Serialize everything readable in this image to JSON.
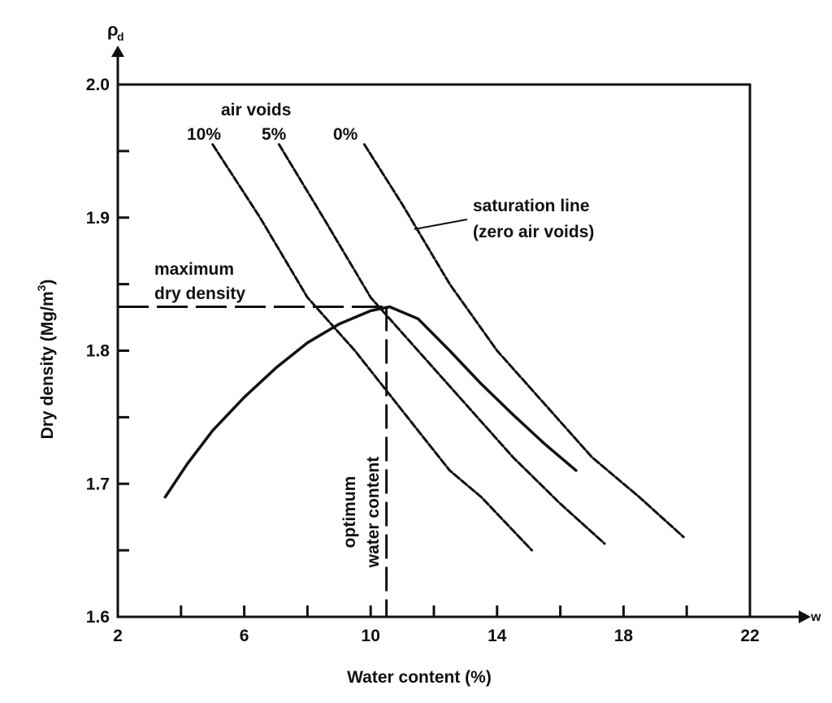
{
  "chart_data": {
    "type": "line",
    "xlabel": "Water content (%)",
    "ylabel": "Dry density (Mg/m",
    "ylabel_sup": "3",
    "ylabel_close": ")",
    "y_axis_symbol": "ρ",
    "y_axis_symbol_sub": "d",
    "x_axis_symbol": "w",
    "xlim": [
      2,
      22
    ],
    "ylim": [
      1.6,
      2.0
    ],
    "x_major_ticks": [
      2,
      6,
      10,
      14,
      18,
      22
    ],
    "x_minor_ticks": [
      4,
      8,
      12,
      16,
      20
    ],
    "y_major_ticks": [
      1.6,
      1.7,
      1.8,
      1.9,
      2.0
    ],
    "y_minor_ticks": [
      1.65,
      1.75,
      1.85,
      1.95
    ],
    "x_tick_labels": [
      "2",
      "6",
      "10",
      "14",
      "18",
      "22"
    ],
    "y_tick_labels": [
      "1.6",
      "1.7",
      "1.8",
      "1.9",
      "2.0"
    ],
    "series": [
      {
        "name": "compaction curve",
        "style": "solid",
        "x": [
          3.5,
          4.2,
          5.0,
          6.0,
          7.0,
          8.0,
          9.0,
          10.0,
          10.6,
          11.5,
          12.5,
          13.5,
          14.5,
          15.5,
          16.5
        ],
        "y": [
          1.69,
          1.715,
          1.74,
          1.765,
          1.787,
          1.806,
          1.82,
          1.83,
          1.833,
          1.824,
          1.8,
          1.775,
          1.752,
          1.73,
          1.71
        ]
      },
      {
        "name": "10% air voids",
        "style": "dotted",
        "x": [
          5.0,
          6.5,
          8.0,
          9.5,
          10.5,
          11.5,
          12.5,
          13.5,
          15.1
        ],
        "y": [
          1.955,
          1.9,
          1.84,
          1.8,
          1.77,
          1.74,
          1.71,
          1.69,
          1.65
        ]
      },
      {
        "name": "5% air voids",
        "style": "dotted",
        "x": [
          7.1,
          8.5,
          10.0,
          11.5,
          13.0,
          14.5,
          16.0,
          17.4
        ],
        "y": [
          1.955,
          1.9,
          1.84,
          1.8,
          1.76,
          1.72,
          1.685,
          1.655
        ]
      },
      {
        "name": "0% air voids (saturation line)",
        "style": "dotted",
        "x": [
          9.8,
          11.0,
          12.5,
          14.0,
          15.5,
          17.0,
          18.5,
          19.9
        ],
        "y": [
          1.955,
          1.91,
          1.85,
          1.8,
          1.76,
          1.72,
          1.69,
          1.66
        ]
      }
    ],
    "reference_lines": {
      "max_dry_density": 1.833,
      "optimum_water_content": 10.5
    },
    "annotations": {
      "air_voids_title": "air voids",
      "air_voids_10": "10%",
      "air_voids_5": "5%",
      "air_voids_0": "0%",
      "saturation_line_1": "saturation line",
      "saturation_line_2": "(zero air voids)",
      "max_dry_density_1": "maximum",
      "max_dry_density_2": "dry density",
      "optimum_1": "optimum",
      "optimum_2": "water content"
    }
  }
}
